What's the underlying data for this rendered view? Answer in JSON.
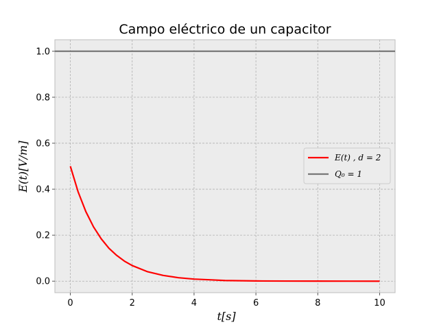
{
  "chart_data": {
    "type": "line",
    "title": "Campo eléctrico de un capacitor",
    "xlabel": "t[s]",
    "ylabel": "E(t)[V/m]",
    "xlim": [
      -0.5,
      10.5
    ],
    "ylim": [
      -0.05,
      1.05
    ],
    "xticks": [
      0,
      2,
      4,
      6,
      8,
      10
    ],
    "yticks": [
      0.0,
      0.2,
      0.4,
      0.6,
      0.8,
      1.0
    ],
    "xtick_labels": [
      "0",
      "2",
      "4",
      "6",
      "8",
      "10"
    ],
    "ytick_labels": [
      "0.0",
      "0.2",
      "0.4",
      "0.6",
      "0.8",
      "1.0"
    ],
    "grid": true,
    "legend_position": "right",
    "series": [
      {
        "name": "E(t)    , d = 2",
        "color": "#ff0000",
        "x": [
          0,
          0.25,
          0.5,
          0.75,
          1,
          1.25,
          1.5,
          1.75,
          2,
          2.5,
          3,
          3.5,
          4,
          4.5,
          5,
          6,
          7,
          8,
          9,
          10
        ],
        "y": [
          0.5,
          0.389,
          0.303,
          0.236,
          0.184,
          0.143,
          0.112,
          0.087,
          0.068,
          0.041,
          0.025,
          0.015,
          0.009,
          0.006,
          0.003,
          0.001,
          0.0005,
          0.0002,
          0.0001,
          0.0
        ]
      },
      {
        "name": "Q₀ = 1",
        "color": "#777777",
        "x": [
          -0.5,
          10.5
        ],
        "y": [
          1.0,
          1.0
        ]
      }
    ]
  }
}
